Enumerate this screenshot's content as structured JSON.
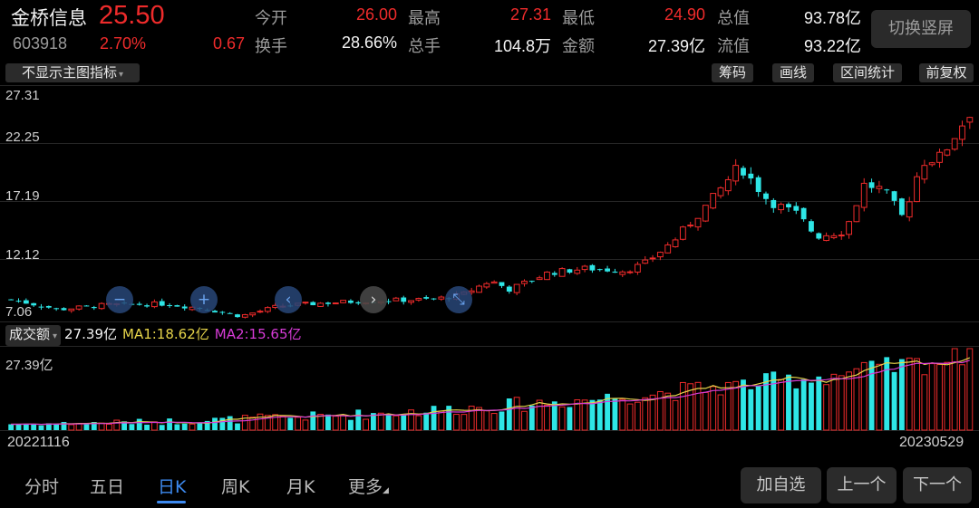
{
  "header": {
    "stock_name": "金桥信息",
    "price": "25.50",
    "code": "603918",
    "change_pct": "2.70%",
    "change": "0.67",
    "switch_label": "切换竖屏",
    "stats": [
      {
        "label": "今开",
        "value": "26.00",
        "tone": "red"
      },
      {
        "label": "最高",
        "value": "27.31",
        "tone": "red"
      },
      {
        "label": "最低",
        "value": "24.90",
        "tone": "red"
      },
      {
        "label": "总值",
        "value": "93.78亿",
        "tone": "white"
      },
      {
        "label": "换手",
        "value": "28.66%",
        "tone": "white"
      },
      {
        "label": "总手",
        "value": "104.8万",
        "tone": "white"
      },
      {
        "label": "金额",
        "value": "27.39亿",
        "tone": "white"
      },
      {
        "label": "流值",
        "value": "93.22亿",
        "tone": "white"
      }
    ]
  },
  "toolbar": {
    "indicator_select": "不显示主图指标",
    "chips_label": "筹码",
    "draw_label": "画线",
    "range_label": "区间统计",
    "adjust_label": "前复权"
  },
  "kline": {
    "y_labels": [
      "27.31",
      "22.25",
      "17.19",
      "12.12",
      "7.06"
    ]
  },
  "volume": {
    "type_select": "成交额",
    "current": "27.39亿",
    "ma1": "MA1:18.62亿",
    "ma2": "MA2:15.65亿",
    "axis_max": "27.39亿"
  },
  "dates": {
    "start": "20221116",
    "end": "20230529"
  },
  "tabs": [
    "分时",
    "五日",
    "日K",
    "周K",
    "月K",
    "更多"
  ],
  "active_tab": 2,
  "actions": {
    "add_watch": "加自选",
    "prev": "上一个",
    "next": "下一个"
  },
  "nav_buttons": [
    {
      "icon": "minus-icon",
      "glyph": "−"
    },
    {
      "icon": "plus-icon",
      "glyph": "+"
    },
    {
      "icon": "arrow-left-icon",
      "glyph": "‹"
    },
    {
      "icon": "arrow-right-icon",
      "glyph": "›"
    },
    {
      "icon": "collapse-icon",
      "glyph": "⤡"
    }
  ],
  "colors": {
    "up": "#ee2b2b",
    "down": "#2ee6e6",
    "ma1": "#e6d44a",
    "ma2": "#d63bd6",
    "accent": "#3d8af0"
  }
}
